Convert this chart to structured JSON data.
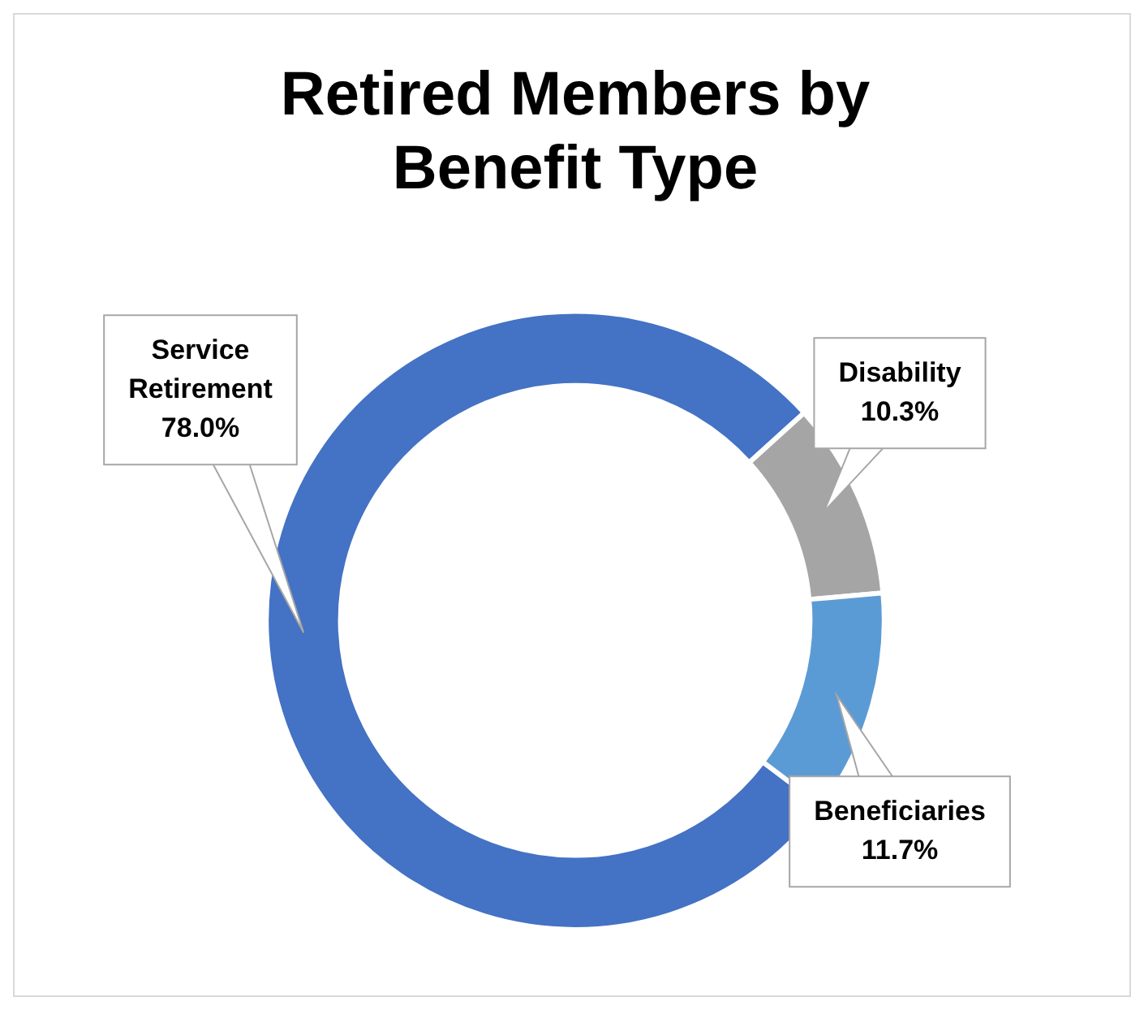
{
  "chart_data": {
    "type": "donut",
    "title": "Retired Members by Benefit Type",
    "categories": [
      "Service Retirement",
      "Disability",
      "Beneficiaries"
    ],
    "values": [
      78.0,
      10.3,
      11.7
    ],
    "value_labels": [
      "78.0%",
      "10.3%",
      "11.7%"
    ],
    "colors": [
      "#4472c4",
      "#a5a5a5",
      "#5b9bd5"
    ],
    "legend": false
  }
}
